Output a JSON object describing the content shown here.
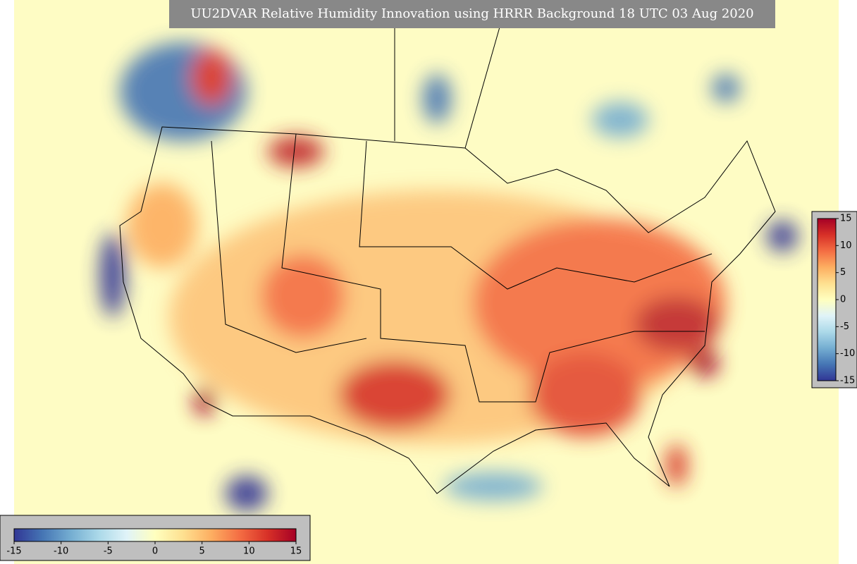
{
  "title": "UU2DVAR Relative Humidity Innovation using HRRR Background 18 UTC 03 Aug 2020",
  "colorbar_bottom": {
    "range": [
      -15,
      15
    ],
    "ticks": [
      -15,
      -10,
      -5,
      0,
      5,
      10,
      15
    ]
  },
  "colorbar_right": {
    "range": [
      -15,
      15
    ],
    "ticks": [
      15,
      10,
      5,
      0,
      -5,
      -10,
      -15
    ]
  }
}
